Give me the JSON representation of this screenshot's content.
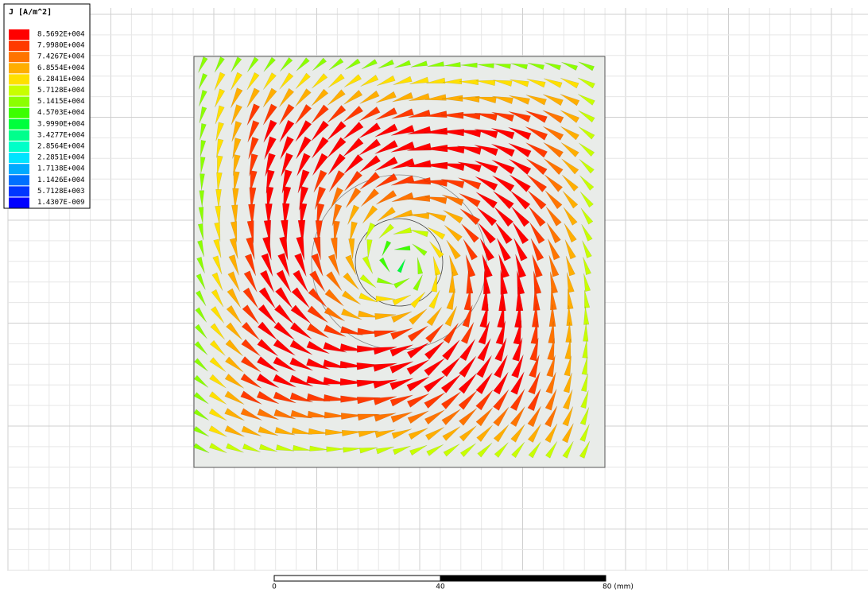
{
  "legend": {
    "title": "J [A/m^2]",
    "entries": [
      "8.5692E+004",
      "7.9980E+004",
      "7.4267E+004",
      "6.8554E+004",
      "6.2841E+004",
      "5.7128E+004",
      "5.1415E+004",
      "4.5703E+004",
      "3.9990E+004",
      "3.4277E+004",
      "2.8564E+004",
      "2.2851E+004",
      "1.7138E+004",
      "1.1426E+004",
      "5.7128E+003",
      "1.4307E-009"
    ],
    "colors": [
      "#ff0000",
      "#ff3a00",
      "#ff7400",
      "#ffae00",
      "#ffe000",
      "#c8ff00",
      "#8cff00",
      "#3cff00",
      "#00ff3c",
      "#00ff8c",
      "#00ffc8",
      "#00e4ff",
      "#00aaff",
      "#0070ff",
      "#0036ff",
      "#0000ff"
    ]
  },
  "scale_bar": {
    "labels": [
      "0",
      "40",
      "80 (mm)"
    ]
  }
}
